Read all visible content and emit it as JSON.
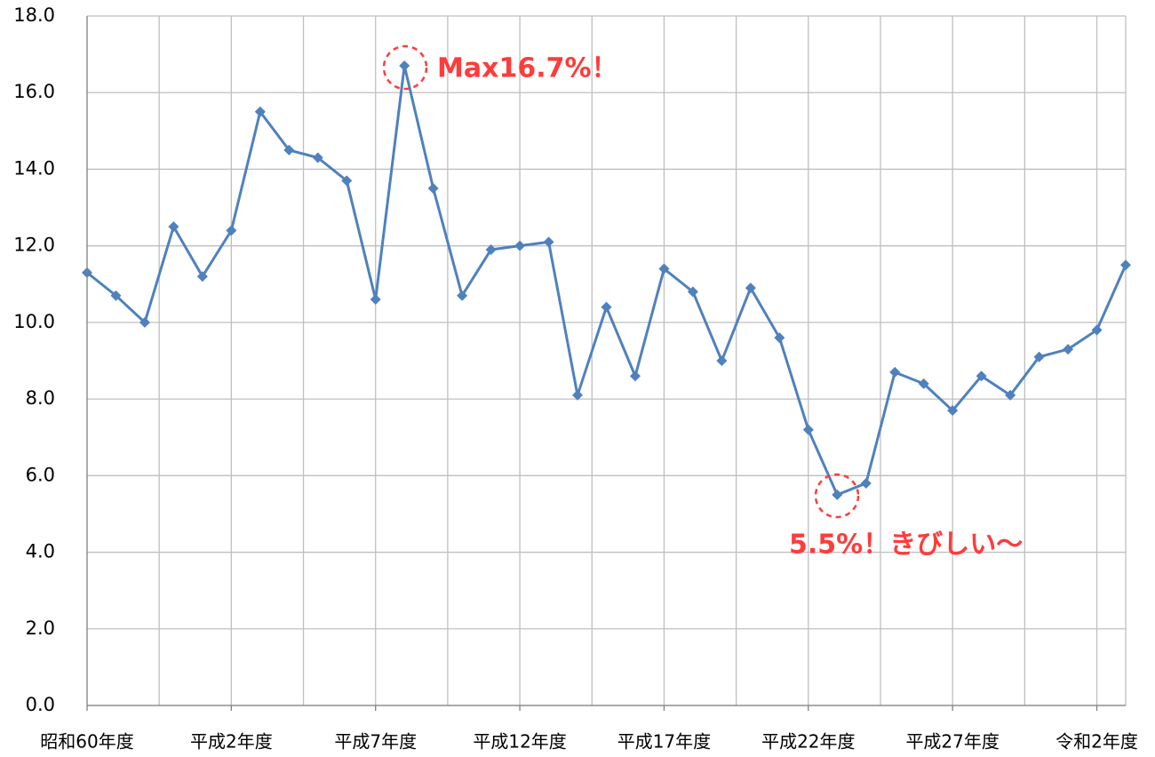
{
  "chart_data": {
    "type": "line",
    "categories": [
      "昭和60年度",
      null,
      null,
      null,
      null,
      "平成2年度",
      null,
      null,
      null,
      null,
      "平成7年度",
      null,
      null,
      null,
      null,
      "平成12年度",
      null,
      null,
      null,
      null,
      "平成17年度",
      null,
      null,
      null,
      null,
      "平成22年度",
      null,
      null,
      null,
      null,
      "平成27年度",
      null,
      null,
      null,
      null,
      "令和2年度",
      null
    ],
    "values": [
      11.3,
      10.7,
      10.0,
      12.5,
      11.2,
      12.4,
      15.5,
      14.5,
      14.3,
      13.7,
      10.6,
      16.7,
      13.5,
      10.7,
      11.9,
      12.0,
      12.1,
      8.1,
      10.4,
      8.6,
      11.4,
      10.8,
      9.0,
      10.9,
      9.6,
      7.2,
      5.5,
      5.8,
      8.7,
      8.4,
      7.7,
      8.6,
      8.1,
      9.1,
      9.3,
      9.8,
      11.5
    ],
    "color": "#4f81bd",
    "ylim": [
      0,
      18
    ],
    "yticks": [
      {
        "value": 0,
        "label": "0.0"
      },
      {
        "value": 2,
        "label": "2.0"
      },
      {
        "value": 4,
        "label": "4.0"
      },
      {
        "value": 6,
        "label": "6.0"
      },
      {
        "value": 8,
        "label": "8.0"
      },
      {
        "value": 10,
        "label": "10.0"
      },
      {
        "value": 12,
        "label": "12.0"
      },
      {
        "value": 14,
        "label": "14.0"
      },
      {
        "value": 16,
        "label": "16.0"
      },
      {
        "value": 18,
        "label": "18.0"
      }
    ],
    "grid": true,
    "annotations": [
      "Max16.7%！",
      "5.5%！きびしい～"
    ]
  }
}
